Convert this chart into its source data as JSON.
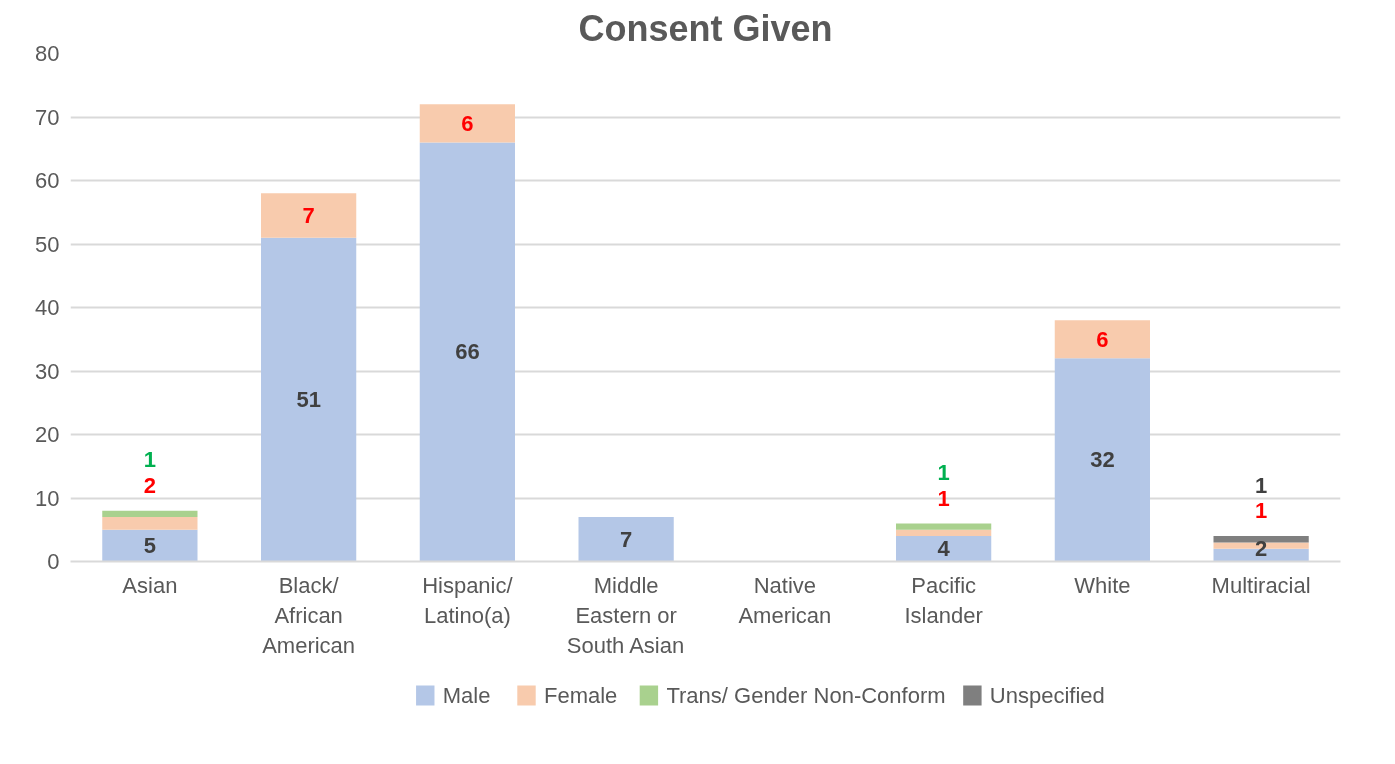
{
  "chart_data": {
    "type": "bar",
    "title": "Consent Given",
    "stacked": true,
    "categories": [
      "Asian",
      "Black/ African American",
      "Hispanic/ Latino(a)",
      "Middle Eastern or South Asian",
      "Native American",
      "Pacific Islander",
      "White",
      "Multiracial"
    ],
    "series": [
      {
        "name": "Male",
        "color": "#b4c7e7",
        "values": [
          5,
          51,
          66,
          7,
          0,
          4,
          32,
          2
        ],
        "value_labels": [
          "5",
          "51",
          "66",
          "7",
          null,
          "4",
          "32",
          "2"
        ]
      },
      {
        "name": "Female",
        "color": "#f8cbad",
        "values": [
          2,
          7,
          6,
          0,
          0,
          1,
          6,
          1
        ],
        "value_labels": [
          "2",
          "7",
          "6",
          null,
          null,
          "1",
          "6",
          "1"
        ]
      },
      {
        "name": "Trans/ Gender Non-Conform",
        "color": "#a9d18e",
        "values": [
          1,
          0,
          0,
          0,
          0,
          1,
          0,
          0
        ],
        "value_labels": [
          "1",
          null,
          null,
          null,
          null,
          "1",
          null,
          null
        ]
      },
      {
        "name": "Unspecified",
        "color": "#7f7f7f",
        "values": [
          0,
          0,
          0,
          0,
          0,
          0,
          0,
          1
        ],
        "value_labels": [
          null,
          null,
          null,
          null,
          null,
          null,
          null,
          "1"
        ]
      }
    ],
    "ylim": [
      0,
      80
    ],
    "yticks": [
      0,
      10,
      20,
      30,
      40,
      50,
      60,
      70,
      80
    ],
    "grid": "y",
    "legend": "bottom"
  }
}
